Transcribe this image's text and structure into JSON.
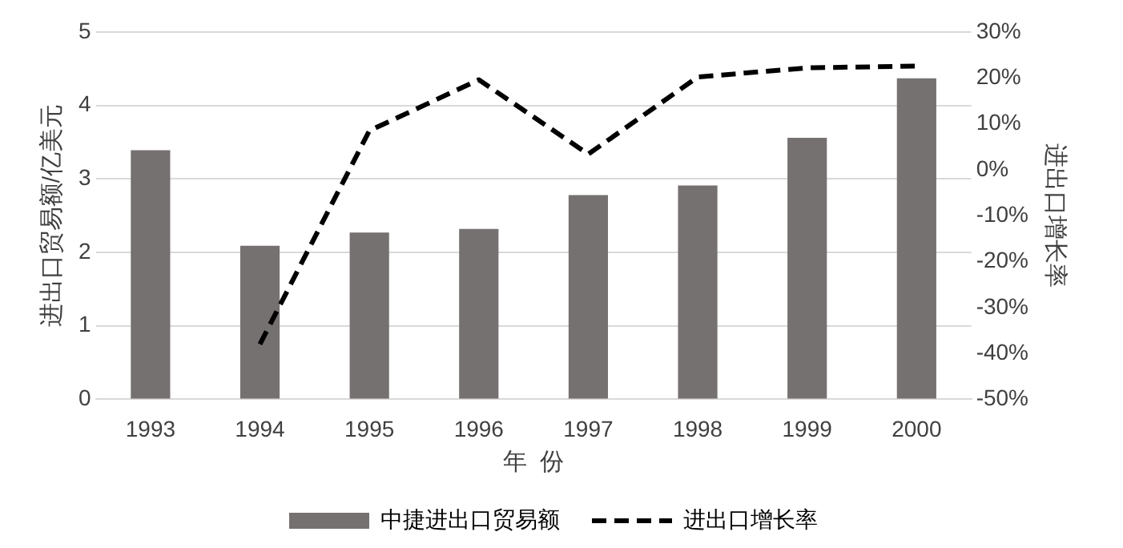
{
  "chart_data": {
    "type": "bar",
    "xlabel": "年  份",
    "ylabel": "进出口贸易额/亿美元",
    "y2label": "进出口增长率",
    "categories": [
      "1993",
      "1994",
      "1995",
      "1996",
      "1997",
      "1998",
      "1999",
      "2000"
    ],
    "series": [
      {
        "name": "中捷进出口贸易额",
        "color": "#767171",
        "values": [
          3.39,
          2.09,
          2.27,
          2.32,
          2.78,
          2.91,
          3.56,
          4.37
        ]
      },
      {
        "name": "进出口增长率",
        "type": "line",
        "axis": "y2",
        "color": "#000000",
        "line_style": "dashed",
        "marker": "none",
        "values": [
          null,
          -38,
          8.5,
          19.6,
          3.4,
          20.2,
          22.2,
          22.6
        ]
      }
    ],
    "ylim": [
      0,
      5
    ],
    "yticks": [
      0,
      1,
      2,
      3,
      4,
      5
    ],
    "y2lim": [
      -50,
      30
    ],
    "y2ticks": [
      {
        "value": -50,
        "label": "-50%"
      },
      {
        "value": -40,
        "label": "-40%"
      },
      {
        "value": -30,
        "label": "-30%"
      },
      {
        "value": -20,
        "label": "-20%"
      },
      {
        "value": -10,
        "label": "-10%"
      },
      {
        "value": 0,
        "label": "0%"
      },
      {
        "value": 10,
        "label": "10%"
      },
      {
        "value": 20,
        "label": "20%"
      },
      {
        "value": 30,
        "label": "30%"
      }
    ],
    "grid": "y",
    "legend": "bottom"
  }
}
